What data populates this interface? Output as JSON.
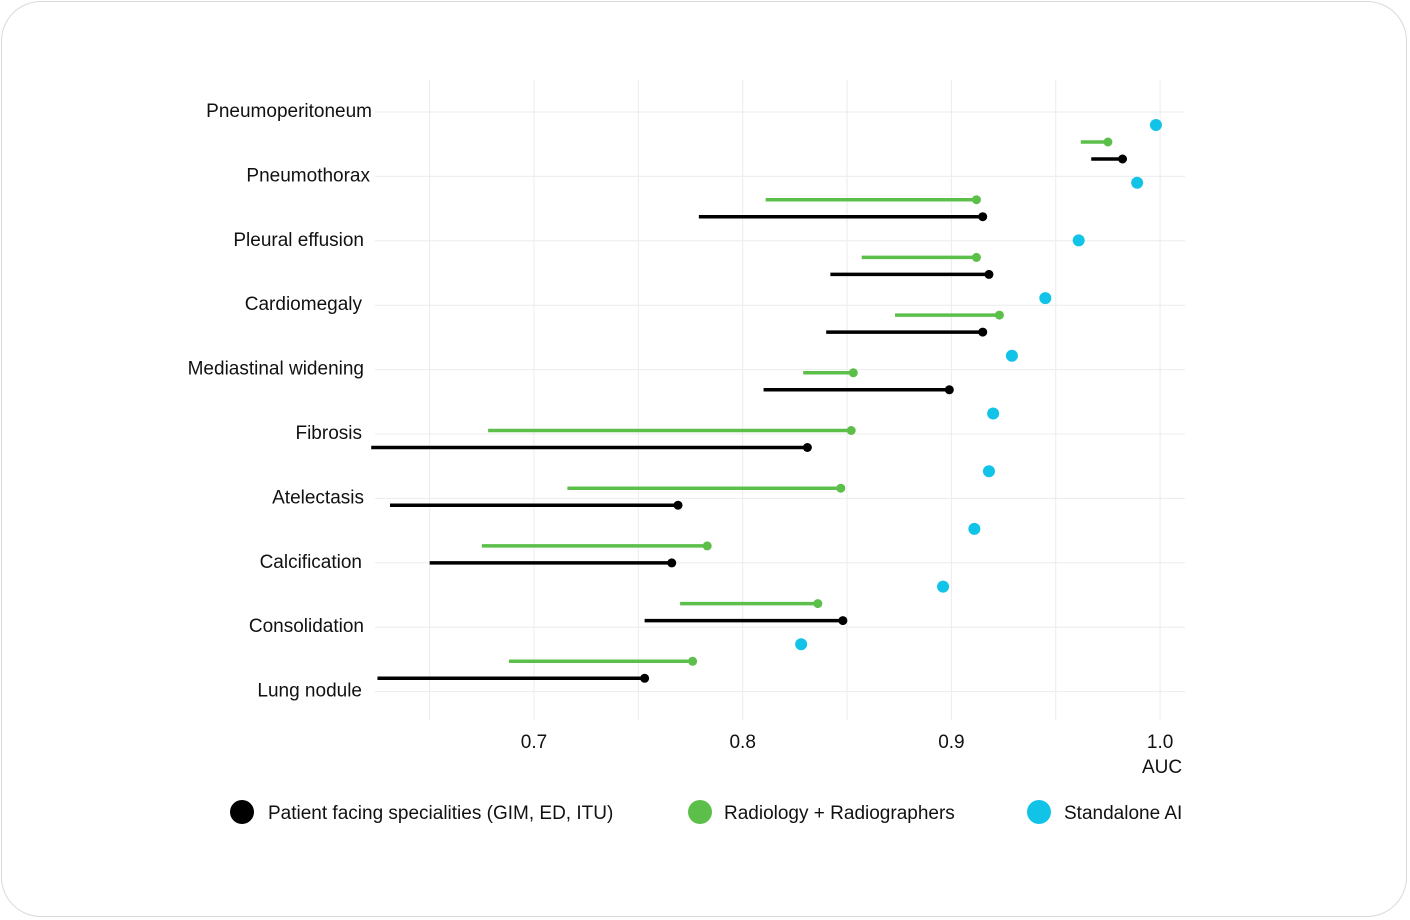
{
  "chart_data": {
    "type": "dumbbell-range",
    "xlabel": "AUC",
    "xlim": [
      0.62,
      1.01
    ],
    "xticks": [
      0.7,
      0.8,
      0.9,
      1.0
    ],
    "xtick_labels": [
      "0.7",
      "0.8",
      "0.9",
      "1.0"
    ],
    "grid": true,
    "legend_placement": "bottom",
    "colors": {
      "patient": "#000000",
      "radiology": "#5cbf4a",
      "ai": "#12c3e8"
    },
    "legend": [
      {
        "key": "patient",
        "label": "Patient facing specialities (GIM, ED, ITU)"
      },
      {
        "key": "radiology",
        "label": "Radiology + Radiographers"
      },
      {
        "key": "ai",
        "label": "Standalone AI"
      }
    ],
    "categories": [
      "Pneumoperitoneum",
      "Pneumothorax",
      "Pleural effusion",
      "Cardiomegaly",
      "Mediastinal widening",
      "Fibrosis",
      "Atelectasis",
      "Calcification",
      "Consolidation",
      "Lung nodule"
    ],
    "series": [
      {
        "key": "ai",
        "values": [
          0.998,
          0.989,
          0.961,
          0.945,
          0.929,
          0.92,
          0.918,
          0.911,
          0.896,
          0.828
        ]
      },
      {
        "key": "radiology",
        "ranges": [
          [
            0.962,
            0.975
          ],
          [
            0.811,
            0.912
          ],
          [
            0.857,
            0.912
          ],
          [
            0.873,
            0.923
          ],
          [
            0.829,
            0.853
          ],
          [
            0.678,
            0.852
          ],
          [
            0.716,
            0.847
          ],
          [
            0.675,
            0.783
          ],
          [
            0.77,
            0.836
          ],
          [
            0.688,
            0.776
          ]
        ]
      },
      {
        "key": "patient",
        "ranges": [
          [
            0.967,
            0.982
          ],
          [
            0.779,
            0.915
          ],
          [
            0.842,
            0.918
          ],
          [
            0.84,
            0.915
          ],
          [
            0.81,
            0.899
          ],
          [
            0.622,
            0.831
          ],
          [
            0.631,
            0.769
          ],
          [
            0.65,
            0.766
          ],
          [
            0.753,
            0.848
          ],
          [
            0.625,
            0.753
          ]
        ]
      }
    ]
  }
}
